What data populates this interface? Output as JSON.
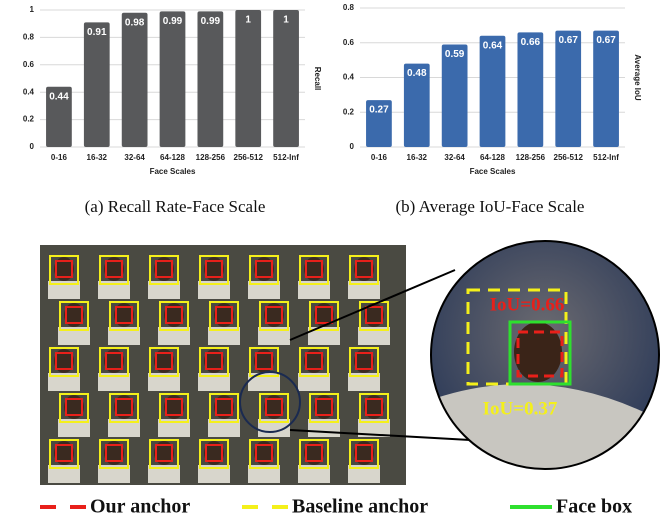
{
  "chart_data": [
    {
      "type": "bar",
      "x_label": "Face Scales",
      "y_label": "Recall",
      "categories": [
        "0-16",
        "16-32",
        "32-64",
        "64-128",
        "128-256",
        "256-512",
        "512-Inf"
      ],
      "values": [
        0.44,
        0.91,
        0.98,
        0.99,
        0.99,
        1,
        1
      ],
      "color": "#58595b",
      "ylim": [
        0,
        1
      ],
      "yticks": [
        0,
        0.2,
        0.4,
        0.6,
        0.8,
        1
      ],
      "grid": true
    },
    {
      "type": "bar",
      "x_label": "Face Scales",
      "y_label": "Average IoU",
      "categories": [
        "0-16",
        "16-32",
        "32-64",
        "64-128",
        "128-256",
        "256-512",
        "512-Inf"
      ],
      "values": [
        0.27,
        0.48,
        0.59,
        0.64,
        0.66,
        0.67,
        0.67
      ],
      "color": "#3b6aac",
      "ylim": [
        0,
        0.8
      ],
      "yticks": [
        0,
        0.2,
        0.4,
        0.6,
        0.8
      ],
      "grid": true
    }
  ],
  "captions": [
    "(a)  Recall Rate-Face Scale",
    "(b)  Average IoU-Face Scale"
  ],
  "image": {
    "annotations": [
      "IoU=0.66",
      "IoU=0.37"
    ],
    "legend": [
      "Our anchor",
      "Baseline anchor",
      "Face box"
    ]
  }
}
